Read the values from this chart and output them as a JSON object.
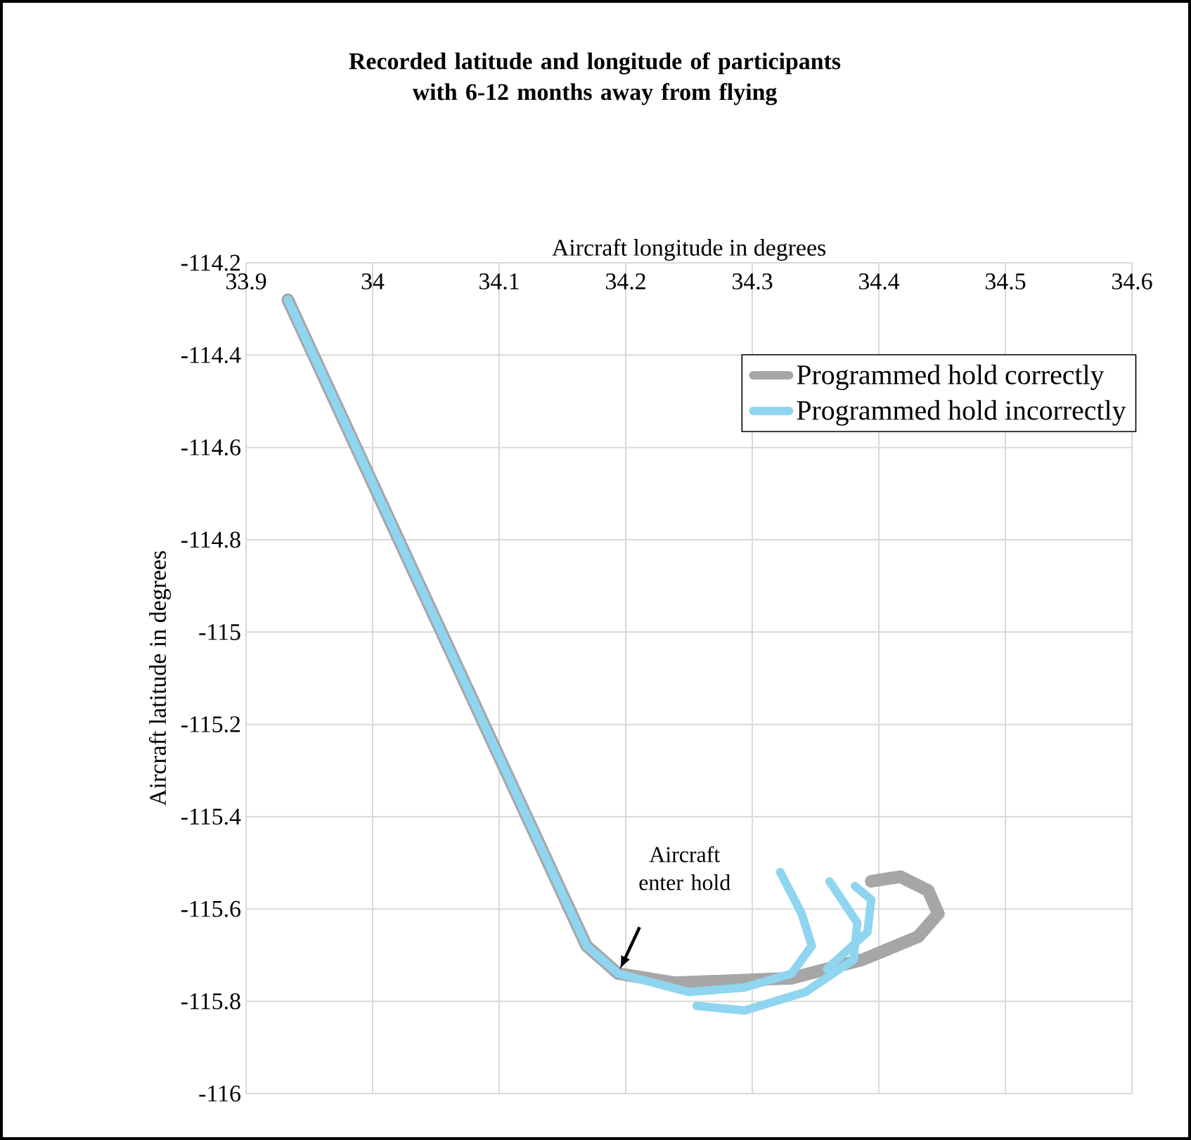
{
  "chart_data": {
    "type": "line",
    "title": "Recorded latitude and longitude of participants with 6-12 months away from flying",
    "xlabel": "Aircraft longitude in degrees",
    "ylabel": "Aircraft latitude in degrees",
    "xlim": [
      33.9,
      34.6
    ],
    "xticks": [
      33.9,
      34,
      34.1,
      34.2,
      34.3,
      34.4,
      34.5,
      34.6
    ],
    "ylim": [
      -116,
      -114.2
    ],
    "yticks": [
      -114.2,
      -114.4,
      -114.6,
      -114.8,
      -115,
      -115.2,
      -115.4,
      -115.6,
      -115.8,
      -116
    ],
    "grid": true,
    "legend": "top right",
    "marker": "none",
    "line_style": "solid",
    "annotations": [
      "Aircraft enter hold"
    ],
    "series": [
      {
        "name": "Programmed hold correctly",
        "color": "#a6a6a6",
        "x": [
          33.933,
          34.169,
          34.194,
          34.239,
          34.331,
          34.387,
          34.431,
          34.447,
          34.439,
          34.417,
          34.394
        ],
        "values": [
          -114.28,
          -115.68,
          -115.74,
          -115.76,
          -115.75,
          -115.71,
          -115.66,
          -115.61,
          -115.56,
          -115.53,
          -115.54
        ]
      },
      {
        "name": "Programmed hold incorrectly",
        "color": "#8fd5f0",
        "x": [
          33.933,
          34.169,
          34.194,
          34.25,
          34.294,
          34.331,
          34.347,
          34.339,
          34.322,
          null,
          34.256,
          34.294,
          34.342,
          34.38,
          34.383,
          34.361,
          null,
          34.359,
          34.391,
          34.394,
          34.381
        ],
        "values": [
          -114.28,
          -115.68,
          -115.74,
          -115.78,
          -115.77,
          -115.74,
          -115.68,
          -115.61,
          -115.52,
          null,
          -115.81,
          -115.82,
          -115.78,
          -115.71,
          -115.63,
          -115.54,
          null,
          -115.73,
          -115.65,
          -115.58,
          -115.55
        ]
      }
    ]
  }
}
